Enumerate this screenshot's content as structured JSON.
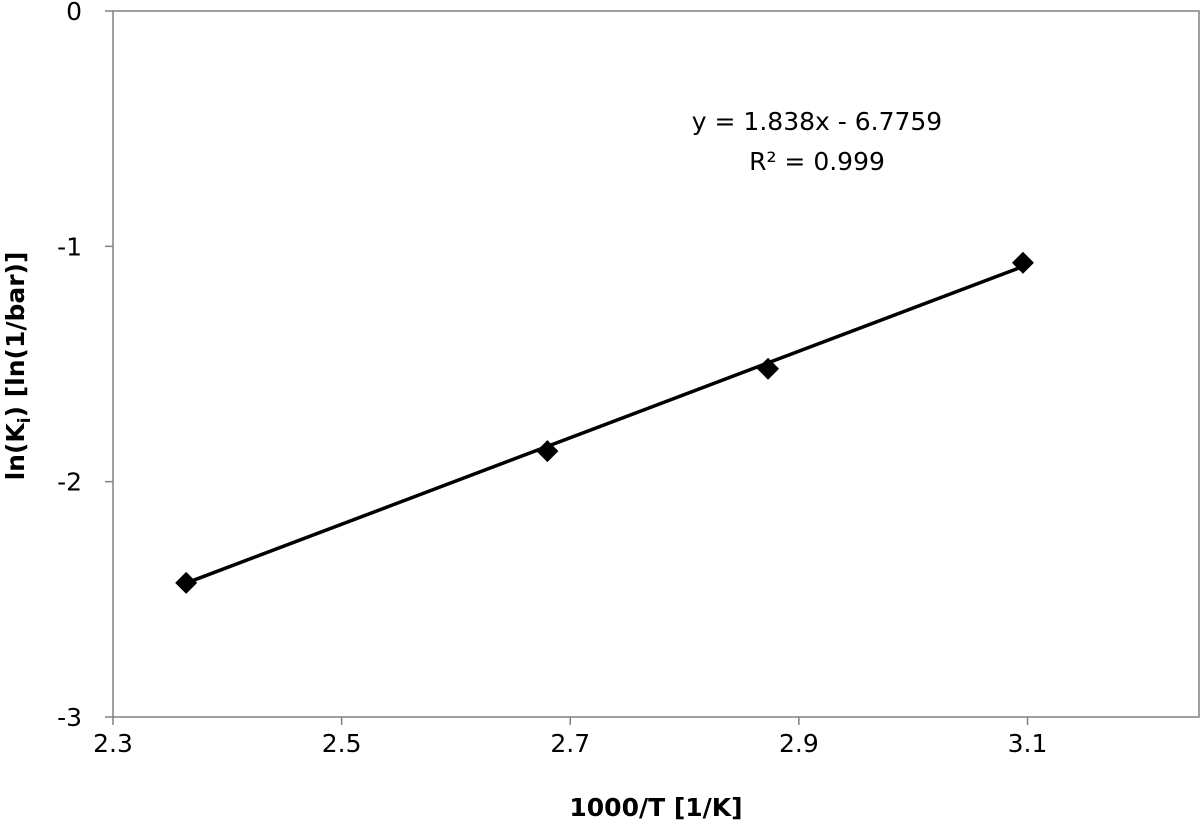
{
  "chart_data": {
    "type": "scatter",
    "title": "",
    "xlabel": "1000/T [1/K]",
    "ylabel_main": "ln(K",
    "ylabel_sub": "i",
    "ylabel_rest": ") [ln(1/bar)]",
    "xlim": [
      2.3,
      3.25
    ],
    "ylim": [
      -3,
      0
    ],
    "x_ticks": [
      2.3,
      2.5,
      2.7,
      2.9,
      3.1
    ],
    "x_tick_labels": [
      "2.3",
      "2.5",
      "2.7",
      "2.9",
      "3.1"
    ],
    "y_ticks": [
      0,
      -1,
      -2,
      -3
    ],
    "y_tick_labels": [
      "0",
      "-1",
      "-2",
      "-3"
    ],
    "series": [
      {
        "x": [
          2.364,
          2.68,
          2.873,
          3.096
        ],
        "y": [
          -2.43,
          -1.87,
          -1.52,
          -1.07
        ],
        "marker": "diamond",
        "color": "#000000"
      }
    ],
    "trendline": {
      "slope": 1.838,
      "intercept": -6.7759,
      "x_from": 2.364,
      "x_to": 3.096
    },
    "annotations": [
      "y = 1.838x - 6.7759",
      "R² = 0.999"
    ],
    "grid": false,
    "legend": "none"
  }
}
